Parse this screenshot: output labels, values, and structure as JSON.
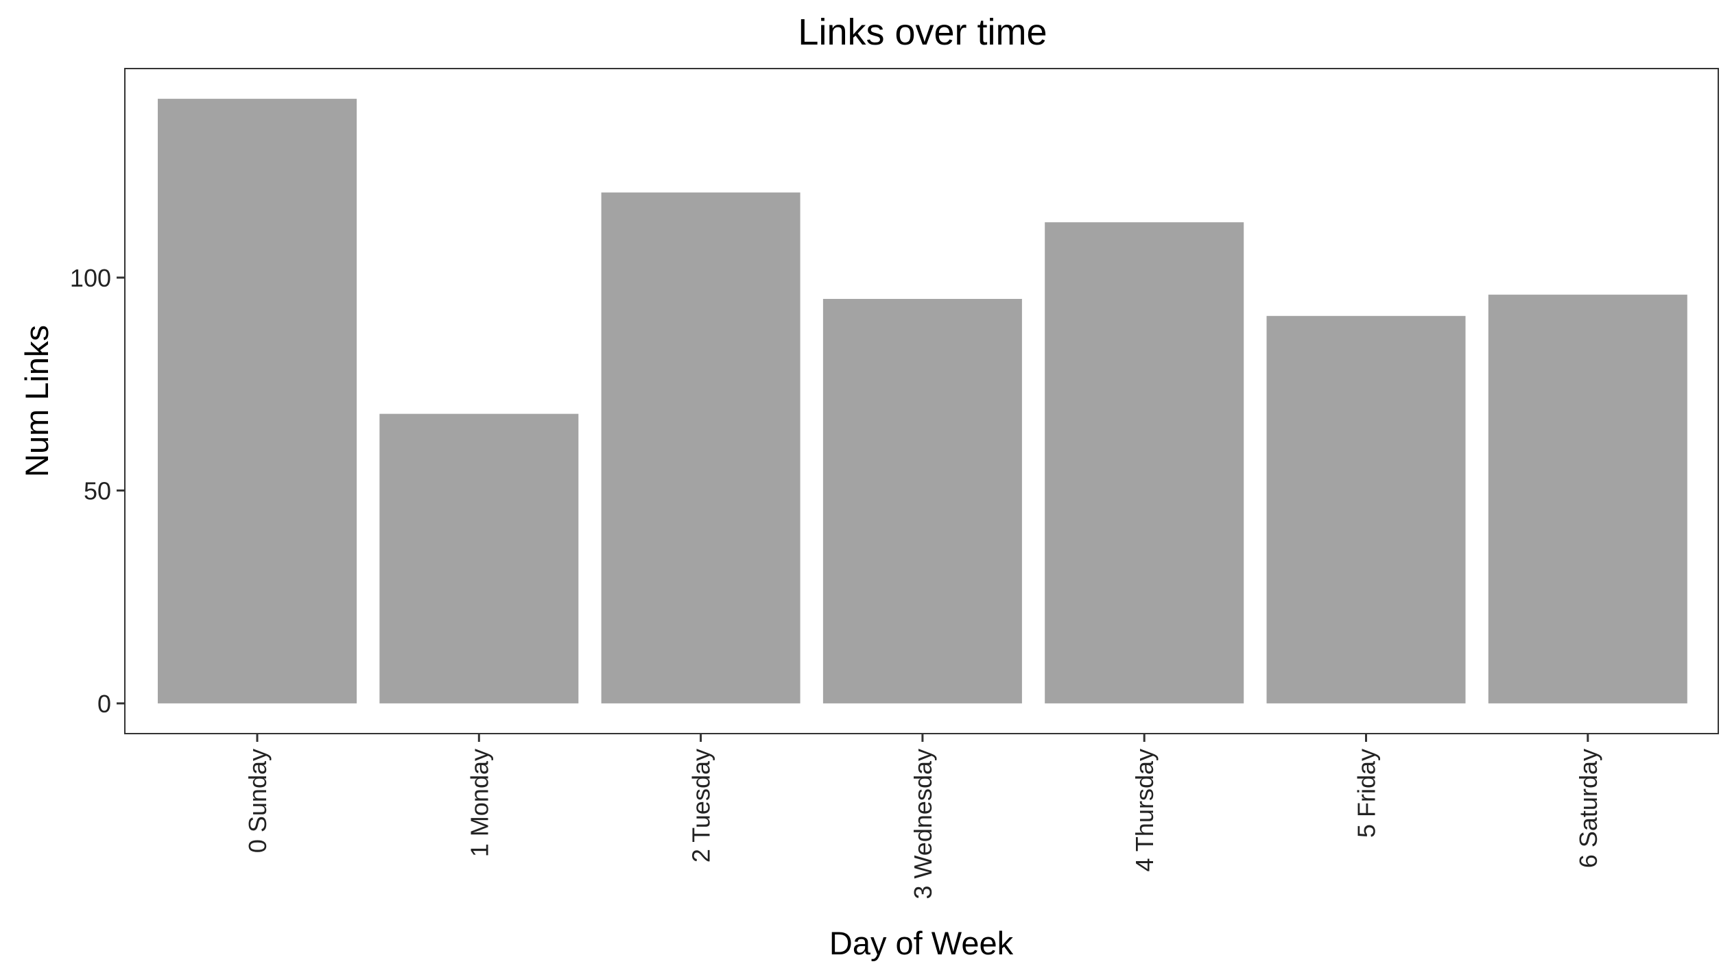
{
  "chart_data": {
    "type": "bar",
    "title": "Links over time",
    "xlabel": "Day of Week",
    "ylabel": "Num Links",
    "categories": [
      "0 Sunday",
      "1 Monday",
      "2 Tuesday",
      "3 Wednesday",
      "4 Thursday",
      "5 Friday",
      "6 Saturday"
    ],
    "values": [
      142,
      68,
      120,
      95,
      113,
      91,
      96
    ],
    "yticks": [
      0,
      50,
      100
    ],
    "ylim": [
      -7.1,
      149.1
    ],
    "bar_color": "#a3a3a3",
    "grid": false,
    "legend": "none"
  }
}
